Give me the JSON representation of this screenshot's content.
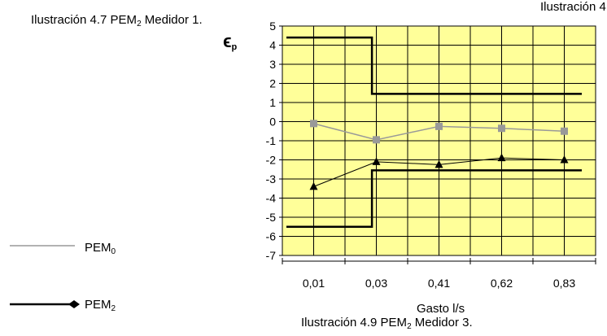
{
  "captions": {
    "top_prefix": "Ilustración 4.7 PEM",
    "top_sub": "2",
    "top_suffix": " Medidor 1.",
    "right": "Ilustración 4",
    "bottom_prefix": "Ilustración 4.9 PEM",
    "bottom_sub": "2",
    "bottom_suffix": " Medidor 3."
  },
  "chart_data": {
    "type": "line",
    "categories": [
      "0,01",
      "0,03",
      "0,41",
      "0,62",
      "0,83"
    ],
    "xlabel": "Gasto l/s",
    "ylabel_main": "ϵ",
    "ylabel_sub": "p",
    "ylim": [
      -7,
      5
    ],
    "yticks": [
      "5",
      "4",
      "3",
      "2",
      "1",
      "0",
      "-1",
      "-2",
      "-3",
      "-4",
      "-5",
      "-6",
      "-7"
    ],
    "grid": true,
    "plot_background": "#ffff99",
    "series": [
      {
        "legend_main": "PEM",
        "legend_sub": "0",
        "marker": "square",
        "color": "#999999",
        "values": [
          -0.1,
          -0.95,
          -0.25,
          -0.35,
          -0.5
        ]
      },
      {
        "legend_main": "PEM",
        "legend_sub": "2",
        "marker": "triangle",
        "color": "#000000",
        "values": [
          -3.4,
          -2.1,
          -2.25,
          -1.9,
          -2.0
        ]
      }
    ],
    "limits": {
      "upper": {
        "y_before": 4.4,
        "y_after": 1.45
      },
      "lower": {
        "y_before": -5.5,
        "y_after": -2.55
      },
      "step_between": [
        "0,01",
        "0,03"
      ]
    }
  }
}
